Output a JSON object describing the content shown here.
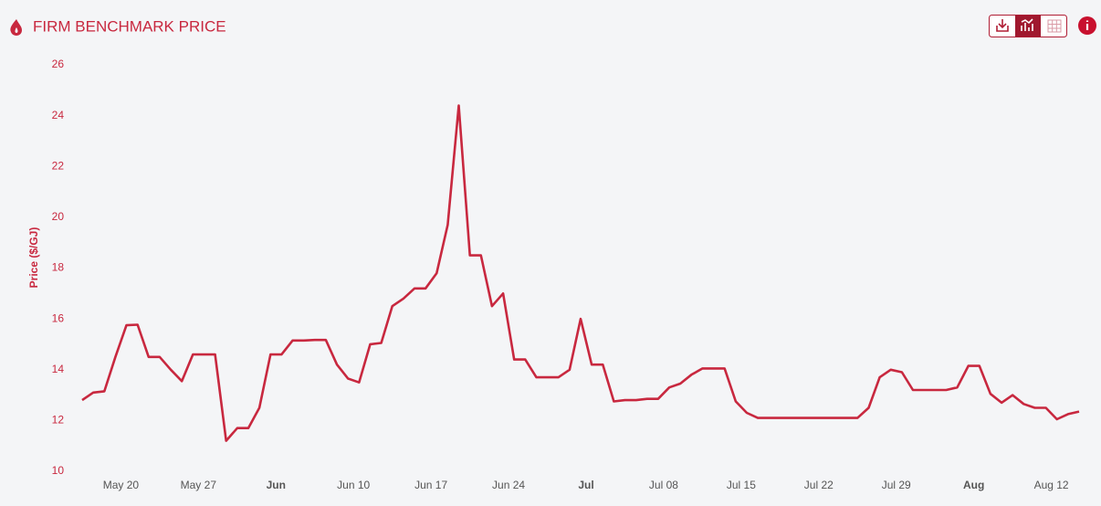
{
  "chart_data": {
    "type": "line",
    "title": "FIRM BENCHMARK PRICE",
    "y_label": "Price ($/GJ)",
    "x": [
      "May 17",
      "May 18",
      "May 19",
      "May 20",
      "May 21",
      "May 22",
      "May 23",
      "May 24",
      "May 25",
      "May 26",
      "May 27",
      "May 28",
      "May 29",
      "May 30",
      "May 31",
      "Jun 01",
      "Jun 02",
      "Jun 03",
      "Jun 04",
      "Jun 05",
      "Jun 06",
      "Jun 07",
      "Jun 08",
      "Jun 09",
      "Jun 10",
      "Jun 11",
      "Jun 12",
      "Jun 13",
      "Jun 14",
      "Jun 15",
      "Jun 16",
      "Jun 17",
      "Jun 18",
      "Jun 19",
      "Jun 20",
      "Jun 21",
      "Jun 22",
      "Jun 23",
      "Jun 24",
      "Jun 25",
      "Jun 26",
      "Jun 27",
      "Jun 28",
      "Jun 29",
      "Jun 30",
      "Jul 01",
      "Jul 02",
      "Jul 03",
      "Jul 04",
      "Jul 05",
      "Jul 06",
      "Jul 07",
      "Jul 08",
      "Jul 09",
      "Jul 10",
      "Jul 11",
      "Jul 12",
      "Jul 13",
      "Jul 14",
      "Jul 15",
      "Jul 16",
      "Jul 17",
      "Jul 18",
      "Jul 19",
      "Jul 20",
      "Jul 21",
      "Jul 22",
      "Jul 23",
      "Jul 24",
      "Jul 25",
      "Jul 26",
      "Jul 27",
      "Jul 28",
      "Jul 29",
      "Jul 30",
      "Jul 31",
      "Aug 01",
      "Aug 02",
      "Aug 03",
      "Aug 04",
      "Aug 05",
      "Aug 06",
      "Aug 07",
      "Aug 08",
      "Aug 09",
      "Aug 10",
      "Aug 11",
      "Aug 12",
      "Aug 13",
      "Aug 14",
      "Aug 15"
    ],
    "series": [
      {
        "name": "Firm Benchmark Price",
        "color": "#c8283f",
        "values": [
          12.8,
          13.1,
          13.15,
          14.5,
          15.75,
          15.77,
          14.5,
          14.5,
          14.0,
          13.55,
          14.6,
          14.6,
          14.6,
          11.2,
          11.7,
          11.7,
          12.5,
          14.6,
          14.6,
          15.15,
          15.15,
          15.17,
          15.17,
          14.2,
          13.65,
          13.5,
          15.0,
          15.05,
          16.5,
          16.8,
          17.2,
          17.2,
          17.8,
          19.7,
          24.4,
          18.5,
          18.5,
          16.5,
          17.0,
          14.4,
          14.4,
          13.7,
          13.7,
          13.7,
          14.0,
          16.0,
          14.2,
          14.2,
          12.75,
          12.8,
          12.8,
          12.85,
          12.85,
          13.3,
          13.45,
          13.8,
          14.05,
          14.05,
          14.05,
          12.75,
          12.3,
          12.1,
          12.1,
          12.1,
          12.1,
          12.1,
          12.1,
          12.1,
          12.1,
          12.1,
          12.1,
          12.5,
          13.7,
          14.0,
          13.9,
          13.2,
          13.2,
          13.2,
          13.2,
          13.3,
          14.15,
          14.15,
          13.05,
          12.7,
          13.0,
          12.65,
          12.5,
          12.5,
          12.05,
          12.25,
          12.35
        ]
      }
    ],
    "xticks": [
      "May 20",
      "May 27",
      {
        "value": "Jun 03",
        "label": "Jun"
      },
      "Jun 10",
      "Jun 17",
      "Jun 24",
      {
        "value": "Jul 01",
        "label": "Jul"
      },
      "Jul 08",
      "Jul 15",
      "Jul 22",
      "Jul 29",
      {
        "value": "Aug 05",
        "label": "Aug"
      },
      "Aug 12"
    ],
    "ylim": [
      10,
      26
    ],
    "yticks": [
      10,
      12,
      14,
      16,
      18,
      20,
      22,
      24,
      26
    ],
    "grid": false
  }
}
